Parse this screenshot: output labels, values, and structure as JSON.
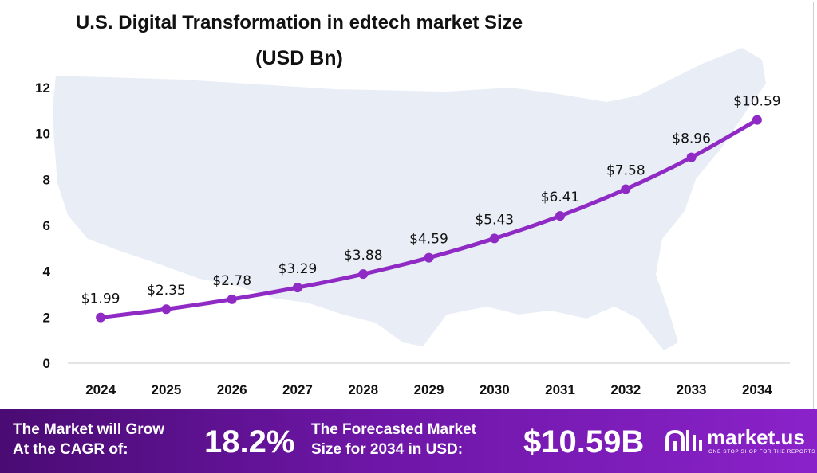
{
  "title": {
    "line1": "U.S. Digital Transformation  in edtech market Size",
    "line2": "(USD Bn)"
  },
  "chart_data": {
    "type": "line",
    "title": "U.S. Digital Transformation  in edtech market Size (USD Bn)",
    "x": [
      "2024",
      "2025",
      "2026",
      "2027",
      "2028",
      "2029",
      "2030",
      "2031",
      "2032",
      "2033",
      "2034"
    ],
    "values": [
      1.99,
      2.35,
      2.78,
      3.29,
      3.88,
      4.59,
      5.43,
      6.41,
      7.58,
      8.96,
      10.59
    ],
    "data_labels": [
      "$1.99",
      "$2.35",
      "$2.78",
      "$3.29",
      "$3.88",
      "$4.59",
      "$5.43",
      "$6.41",
      "$7.58",
      "$8.96",
      "$10.59"
    ],
    "yticks": [
      "0",
      "2",
      "4",
      "6",
      "8",
      "10",
      "12"
    ],
    "ylim": [
      0,
      12
    ],
    "grid": false,
    "legend": "none",
    "line_color": "#8f2bc4",
    "background_watermark": "map of the United States"
  },
  "footer": {
    "cagr_text_line1": "The Market will Grow",
    "cagr_text_line2": "At the CAGR of:",
    "cagr_value": "18.2%",
    "forecast_text_line1": "The Forecasted Market",
    "forecast_text_line2": "Size for 2034 in USD:",
    "forecast_value": "$10.59B",
    "logo_name": "market.us",
    "logo_tagline": "ONE STOP SHOP FOR THE REPORTS"
  },
  "colors": {
    "accent": "#8f2bc4",
    "footer_gradient_start": "#4a0b73",
    "footer_gradient_end": "#8a22c9",
    "map_watermark": "#e9eef6"
  }
}
